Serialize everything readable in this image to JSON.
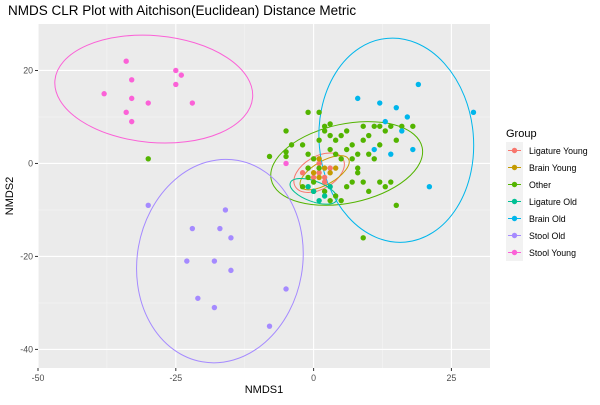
{
  "chart_data": {
    "type": "scatter",
    "title": "NMDS CLR Plot with Aitchison(Euclidean) Distance Metric",
    "xlabel": "NMDS1",
    "ylabel": "NMDS2",
    "xlim": [
      -50,
      32
    ],
    "ylim": [
      -44,
      30
    ],
    "x_ticks": [
      -50,
      -25,
      0,
      25
    ],
    "x_tick_labels": [
      "-50",
      "-25",
      "0",
      "25"
    ],
    "y_ticks": [
      -40,
      -20,
      0,
      20
    ],
    "y_tick_labels": [
      "-40",
      "-20",
      "0",
      "20"
    ],
    "grid": true,
    "legend": {
      "title": "Group",
      "placement": "right"
    },
    "series": [
      {
        "name": "Ligature Young",
        "color": "#F8766D",
        "points": [
          [
            -1,
            -1
          ],
          [
            0,
            -3
          ],
          [
            1,
            -2
          ],
          [
            2,
            -4
          ],
          [
            3,
            -1
          ],
          [
            -2,
            -2
          ],
          [
            1,
            0
          ],
          [
            2,
            -3
          ]
        ],
        "ellipse": {
          "cx": 1,
          "cy": -2,
          "rx": 5,
          "ry": 3.5,
          "angle_deg": 30
        }
      },
      {
        "name": "Brain Young",
        "color": "#C49A00",
        "points": [
          [
            0,
            -2
          ],
          [
            1,
            -3
          ],
          [
            2,
            -1
          ],
          [
            3,
            -2
          ],
          [
            4,
            -1
          ],
          [
            1,
            1
          ]
        ],
        "ellipse": {
          "cx": 2,
          "cy": -2,
          "rx": 5,
          "ry": 2.5,
          "angle_deg": 30
        }
      },
      {
        "name": "Other",
        "color": "#53B400",
        "points": [
          [
            -30,
            1
          ],
          [
            -5,
            1.5
          ],
          [
            -5,
            2.5
          ],
          [
            -5,
            7
          ],
          [
            -4,
            4
          ],
          [
            -2,
            4
          ],
          [
            -1,
            2
          ],
          [
            -1,
            -1
          ],
          [
            0,
            -4
          ],
          [
            0,
            -6
          ],
          [
            -1,
            11
          ],
          [
            1,
            11
          ],
          [
            1,
            5
          ],
          [
            2,
            7
          ],
          [
            2,
            8
          ],
          [
            3,
            8.5
          ],
          [
            3,
            6
          ],
          [
            3,
            3
          ],
          [
            4,
            5
          ],
          [
            4,
            2
          ],
          [
            5,
            6
          ],
          [
            5,
            1
          ],
          [
            6,
            3
          ],
          [
            6,
            7
          ],
          [
            7,
            4
          ],
          [
            7,
            1
          ],
          [
            8,
            2
          ],
          [
            8,
            -1
          ],
          [
            9,
            5
          ],
          [
            9,
            8
          ],
          [
            10,
            2
          ],
          [
            10,
            6
          ],
          [
            11,
            8
          ],
          [
            11,
            1
          ],
          [
            12,
            4
          ],
          [
            12,
            8
          ],
          [
            13,
            7
          ],
          [
            14,
            8
          ],
          [
            15,
            5
          ],
          [
            16,
            8
          ],
          [
            18,
            8
          ],
          [
            6,
            -5
          ],
          [
            7,
            -4
          ],
          [
            8,
            -2
          ],
          [
            9,
            -4
          ],
          [
            10,
            -6
          ],
          [
            12,
            -4
          ],
          [
            13,
            -5
          ],
          [
            14,
            -4
          ],
          [
            15,
            -9
          ],
          [
            -2,
            -5
          ],
          [
            -1,
            -3
          ],
          [
            2,
            -6
          ],
          [
            4,
            -7
          ],
          [
            5,
            -8
          ],
          [
            3,
            -8
          ],
          [
            9,
            -16
          ],
          [
            -8,
            1.5
          ],
          [
            0,
            1
          ],
          [
            1,
            -1
          ]
        ],
        "ellipse": {
          "cx": 6,
          "cy": 0,
          "rx": 14,
          "ry": 8.5,
          "angle_deg": 12
        }
      },
      {
        "name": "Ligature Old",
        "color": "#00C094",
        "points": [
          [
            0,
            -6
          ],
          [
            2,
            -7
          ],
          [
            1,
            -8
          ],
          [
            3,
            -5
          ],
          [
            -1,
            -5
          ]
        ],
        "ellipse": {
          "cx": 0,
          "cy": -6,
          "rx": 4.5,
          "ry": 2.2,
          "angle_deg": -20
        }
      },
      {
        "name": "Brain Old",
        "color": "#00B6EB",
        "points": [
          [
            8,
            14
          ],
          [
            12,
            13
          ],
          [
            13,
            9
          ],
          [
            14,
            2
          ],
          [
            15,
            12
          ],
          [
            16,
            7
          ],
          [
            17,
            10
          ],
          [
            18,
            3
          ],
          [
            19,
            17
          ],
          [
            21,
            -5
          ],
          [
            29,
            11
          ],
          [
            11,
            3
          ]
        ],
        "ellipse": {
          "cx": 15,
          "cy": 5,
          "rx": 14,
          "ry": 22,
          "angle_deg": 5
        }
      },
      {
        "name": "Stool Old",
        "color": "#A58AFF",
        "points": [
          [
            -30,
            -9
          ],
          [
            -22,
            -14
          ],
          [
            -21,
            -29
          ],
          [
            -18,
            -31
          ],
          [
            -17,
            -14
          ],
          [
            -16,
            -10
          ],
          [
            -15,
            -16
          ],
          [
            -15,
            -23
          ],
          [
            -23,
            -21
          ],
          [
            -18,
            -21
          ],
          [
            -5,
            -27
          ],
          [
            -8,
            -35
          ]
        ],
        "ellipse": {
          "cx": -17,
          "cy": -21,
          "rx": 15,
          "ry": 22,
          "angle_deg": -10
        }
      },
      {
        "name": "Stool Young",
        "color": "#FB61D7",
        "points": [
          [
            -38,
            15
          ],
          [
            -34,
            22
          ],
          [
            -33,
            18
          ],
          [
            -33,
            14
          ],
          [
            -34,
            11
          ],
          [
            -33,
            9
          ],
          [
            -30,
            13
          ],
          [
            -25,
            20
          ],
          [
            -24,
            19
          ],
          [
            -25,
            17
          ],
          [
            -22,
            13
          ],
          [
            -5,
            0
          ]
        ],
        "ellipse": {
          "cx": -29,
          "cy": 16,
          "rx": 18,
          "ry": 11.5,
          "angle_deg": -5
        }
      }
    ]
  }
}
